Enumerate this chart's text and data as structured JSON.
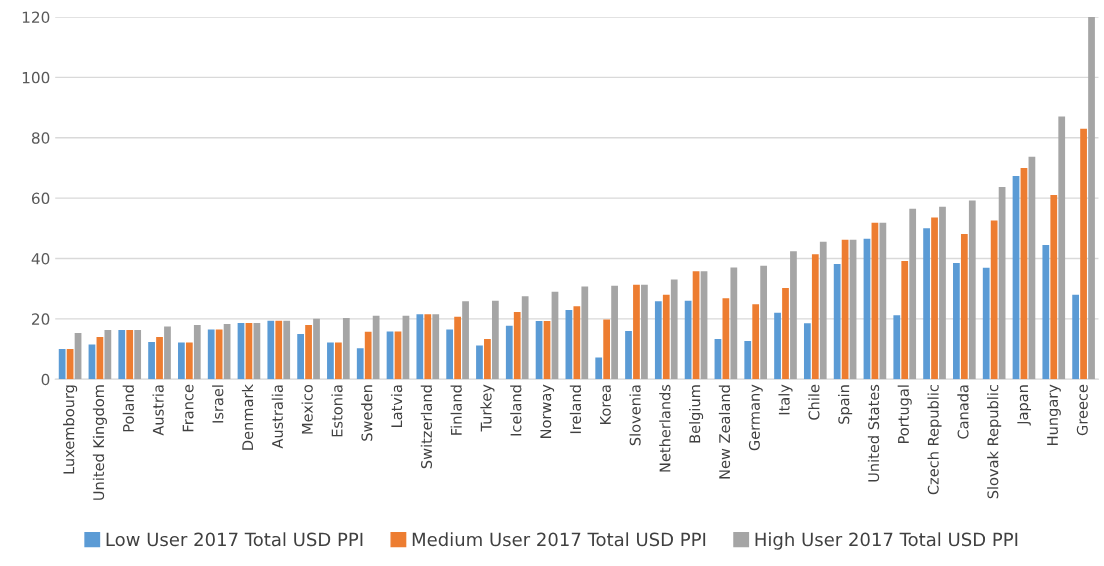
{
  "chart_data": {
    "type": "bar",
    "categories": [
      "Luxembourg",
      "United Kingdom",
      "Poland",
      "Austria",
      "France",
      "Israel",
      "Denmark",
      "Australia",
      "Mexico",
      "Estonia",
      "Sweden",
      "Latvia",
      "Switzerland",
      "Finland",
      "Turkey",
      "Iceland",
      "Norway",
      "Ireland",
      "Korea",
      "Slovenia",
      "Netherlands",
      "Belgium",
      "New Zealand",
      "Germany",
      "Italy",
      "Chile",
      "Spain",
      "United States",
      "Portugal",
      "Czech Republic",
      "Canada",
      "Slovak Republic",
      "Japan",
      "Hungary",
      "Greece"
    ],
    "series": [
      {
        "name": "Low User 2017 Total USD PPI",
        "color": "#5b9bd5",
        "values": [
          10,
          11.5,
          16.3,
          12.3,
          12.2,
          16.5,
          18.6,
          19.4,
          15,
          12.2,
          10.3,
          15.8,
          21.5,
          16.5,
          11.2,
          17.7,
          19.3,
          22.9,
          7.2,
          16,
          25.8,
          26,
          13.3,
          12.7,
          22,
          18.5,
          38.2,
          46.5,
          21.2,
          50,
          38.5,
          36.9,
          67.3,
          44.5,
          28
        ]
      },
      {
        "name": "Medium User 2017 Total USD PPI",
        "color": "#ed7d31",
        "values": [
          10,
          14,
          16.3,
          14,
          12.2,
          16.5,
          18.6,
          19.4,
          18,
          12.2,
          15.7,
          15.8,
          21.5,
          20.7,
          13.3,
          22.3,
          19.3,
          24.2,
          19.8,
          31.3,
          28,
          35.8,
          26.8,
          24.8,
          30.2,
          41.4,
          46.2,
          51.8,
          39.2,
          53.6,
          48.1,
          52.6,
          70,
          61,
          83
        ]
      },
      {
        "name": "High User 2017 Total USD PPI",
        "color": "#a5a5a5",
        "values": [
          15.3,
          16.3,
          16.3,
          17.5,
          18,
          18.3,
          18.6,
          19.4,
          20,
          20.3,
          21,
          21,
          21.5,
          25.8,
          26,
          27.5,
          29,
          30.7,
          31,
          31.3,
          33,
          35.8,
          37,
          37.6,
          42.4,
          45.5,
          46.2,
          51.8,
          56.5,
          57.1,
          59.2,
          63.7,
          73.7,
          87,
          120
        ]
      }
    ],
    "ylim": [
      0,
      120
    ],
    "yticks": [
      0,
      20,
      40,
      60,
      80,
      100,
      120
    ],
    "grid": "y",
    "legend": "bottom"
  }
}
